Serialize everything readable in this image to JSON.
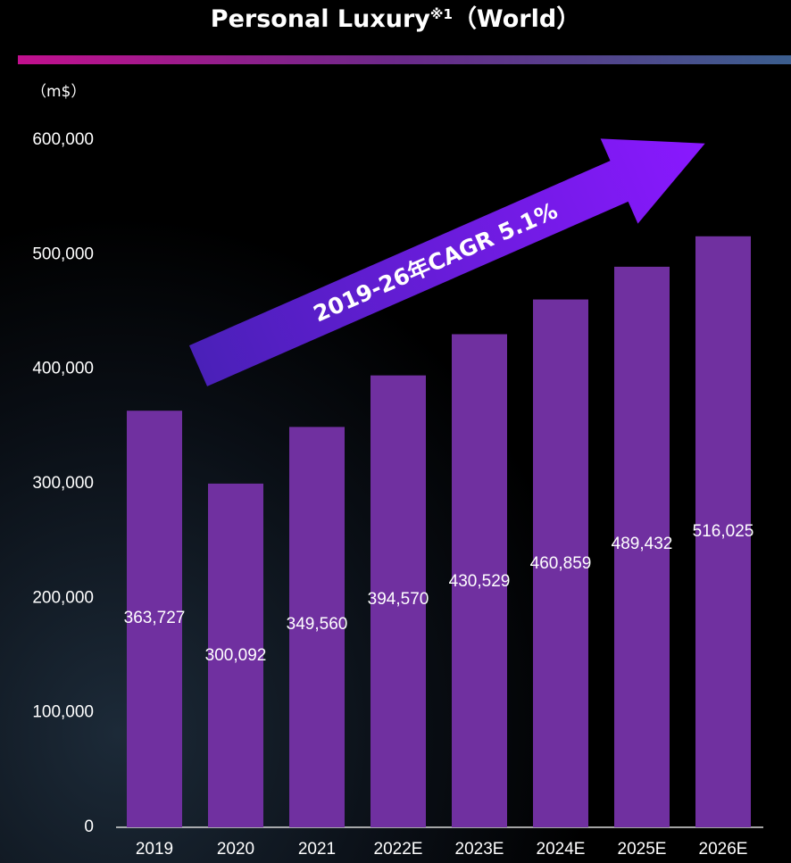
{
  "chart_data": {
    "type": "bar",
    "title": "Personal Luxury",
    "title_note": "※1",
    "title_suffix": "（World）",
    "unit_label": "（m$）",
    "annotation": "2019-26年CAGR 5.1%",
    "categories": [
      "2019",
      "2020",
      "2021",
      "2022E",
      "2023E",
      "2024E",
      "2025E",
      "2026E"
    ],
    "values": [
      363727,
      300092,
      349560,
      394570,
      430529,
      460859,
      489432,
      516025
    ],
    "value_labels": [
      "363,727",
      "300,092",
      "349,560",
      "394,570",
      "430,529",
      "460,859",
      "489,432",
      "516,025"
    ],
    "color": "#7030a0",
    "ylim": [
      0,
      600000
    ],
    "yticks": [
      0,
      {
        "value": 100000,
        "label": "100,000"
      },
      {
        "value": 200000,
        "label": "200,000"
      },
      {
        "value": 300000,
        "label": "300,000"
      },
      {
        "value": 400000,
        "label": "400,000"
      },
      {
        "value": 500000,
        "label": "500,000"
      },
      {
        "value": 600000,
        "label": "600,000"
      }
    ],
    "grid": false
  }
}
